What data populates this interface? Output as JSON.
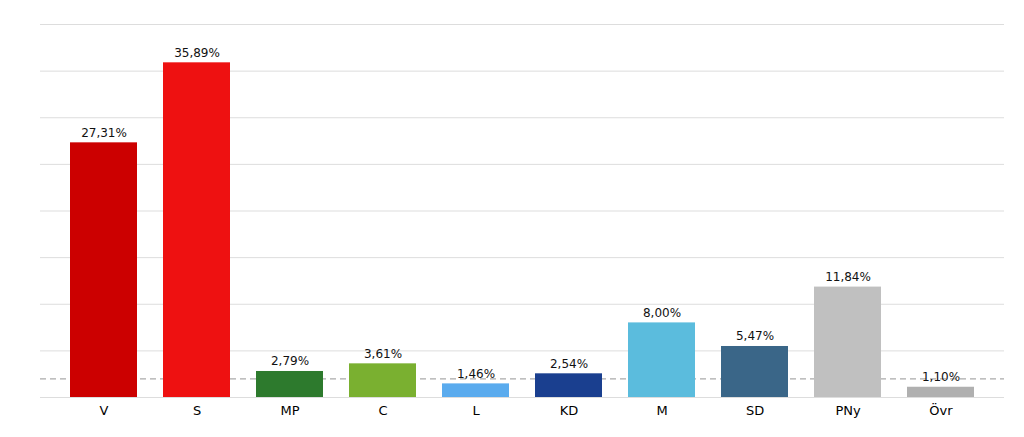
{
  "chart_data": {
    "type": "bar",
    "categories": [
      "V",
      "S",
      "MP",
      "C",
      "L",
      "KD",
      "M",
      "SD",
      "PNy",
      "Övr"
    ],
    "values": [
      27.31,
      35.89,
      2.79,
      3.61,
      1.46,
      2.54,
      8.0,
      5.47,
      11.84,
      1.1
    ],
    "value_labels": [
      "27,31%",
      "35,89%",
      "2,79%",
      "3,61%",
      "1,46%",
      "2,54%",
      "8,00%",
      "5,47%",
      "11,84%",
      "1,10%"
    ],
    "colors": [
      "#cc0000",
      "#ee1111",
      "#2d7a2d",
      "#7ab030",
      "#5aabee",
      "#1a3f8f",
      "#5bbcdd",
      "#3a6688",
      "#c0c0c0",
      "#b0b0b0"
    ],
    "ylim": [
      0,
      40
    ],
    "yticks": [
      0,
      5,
      10,
      15,
      20,
      25,
      30,
      35,
      40
    ],
    "grid": true,
    "data_labels": true,
    "tick_labels": "x",
    "threshold": 2.0
  }
}
